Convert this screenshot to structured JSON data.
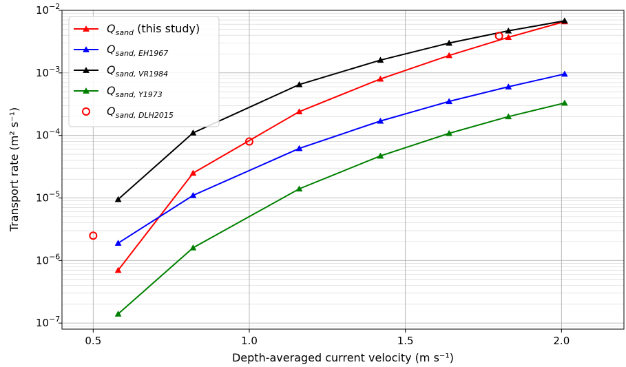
{
  "chart_data": {
    "type": "line",
    "xlabel": "Depth-averaged current velocity (m s⁻¹)",
    "ylabel": "Transport rate (m² s⁻¹)",
    "xlim": [
      0.4,
      2.2
    ],
    "ylim": [
      8e-08,
      0.01
    ],
    "y_scale": "log",
    "x_ticks": [
      "0.5",
      "1.0",
      "1.5",
      "2.0"
    ],
    "y_ticks": [
      {
        "base": "10",
        "exp": "−7",
        "value": 1e-07
      },
      {
        "base": "10",
        "exp": "−6",
        "value": 1e-06
      },
      {
        "base": "10",
        "exp": "−5",
        "value": 1e-05
      },
      {
        "base": "10",
        "exp": "−4",
        "value": 0.0001
      },
      {
        "base": "10",
        "exp": "−3",
        "value": 0.001
      },
      {
        "base": "10",
        "exp": "−2",
        "value": 0.01
      }
    ],
    "grid": true,
    "legend_position": "top-left",
    "series": [
      {
        "name": "Q_sand (this study)",
        "label_main": "Q",
        "label_sub": "sand",
        "label_suffix": " (this study)",
        "color": "#ff0000",
        "marker": "triangle",
        "line": true,
        "x": [
          0.58,
          0.82,
          1.16,
          1.42,
          1.64,
          1.83,
          2.01
        ],
        "y": [
          7e-07,
          2.5e-05,
          0.00024,
          0.0008,
          0.0019,
          0.0037,
          0.0066
        ]
      },
      {
        "name": "Q_sand,EH1967",
        "label_main": "Q",
        "label_sub": "sand, EH1967",
        "label_suffix": "",
        "color": "#0000ff",
        "marker": "triangle",
        "line": true,
        "x": [
          0.58,
          0.82,
          1.16,
          1.42,
          1.64,
          1.83,
          2.01
        ],
        "y": [
          1.9e-06,
          1.1e-05,
          6.2e-05,
          0.00017,
          0.00035,
          0.0006,
          0.00096
        ]
      },
      {
        "name": "Q_sand,VR1984",
        "label_main": "Q",
        "label_sub": "sand, VR1984",
        "label_suffix": "",
        "color": "#000000",
        "marker": "triangle",
        "line": true,
        "x": [
          0.58,
          0.82,
          1.16,
          1.42,
          1.64,
          1.83,
          2.01
        ],
        "y": [
          9.5e-06,
          0.00011,
          0.00065,
          0.0016,
          0.003,
          0.0047,
          0.0068
        ]
      },
      {
        "name": "Q_sand,Y1973",
        "label_main": "Q",
        "label_sub": "sand, Y1973",
        "label_suffix": "",
        "color": "#008000",
        "marker": "triangle",
        "line": true,
        "x": [
          0.58,
          0.82,
          1.16,
          1.42,
          1.64,
          1.83,
          2.01
        ],
        "y": [
          1.4e-07,
          1.6e-06,
          1.4e-05,
          4.7e-05,
          0.000108,
          0.0002,
          0.00033
        ]
      },
      {
        "name": "Q_sand,DLH2015",
        "label_main": "Q",
        "label_sub": "sand, DLH2015",
        "label_suffix": "",
        "color": "#ff0000",
        "marker": "circle-open",
        "line": false,
        "x": [
          0.5,
          1.0,
          1.8
        ],
        "y": [
          2.5e-06,
          8e-05,
          0.0039
        ]
      }
    ]
  }
}
